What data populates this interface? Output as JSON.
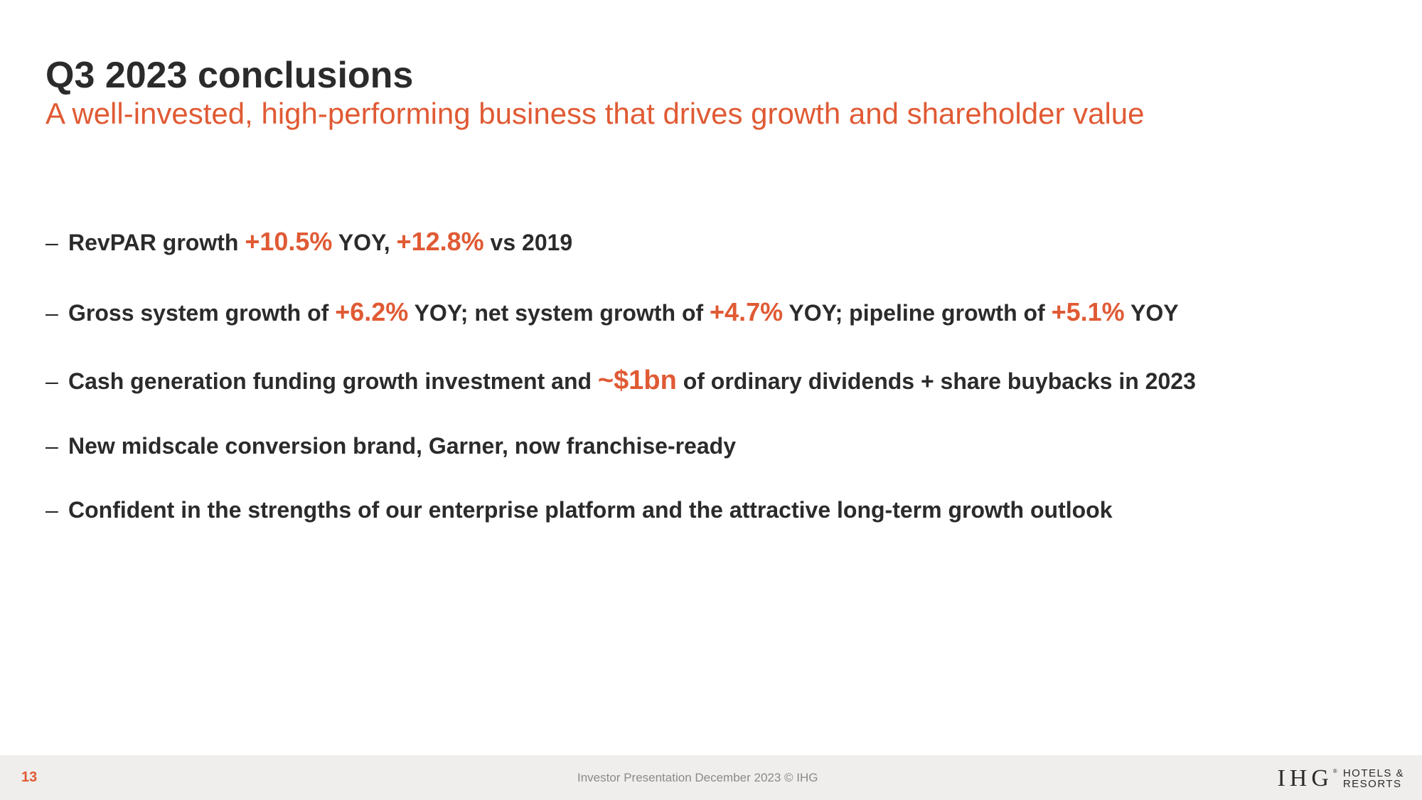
{
  "header": {
    "title": "Q3 2023 conclusions",
    "subtitle": "A well-invested, high-performing business that drives growth and shareholder value"
  },
  "bullets": [
    {
      "parts": [
        "RevPAR growth ",
        "+10.5%",
        " YOY, ",
        "+12.8%",
        " vs 2019"
      ]
    },
    {
      "parts": [
        "Gross system growth of ",
        "+6.2%",
        " YOY; net system growth of ",
        "+4.7%",
        " YOY; pipeline growth of ",
        "+5.1%",
        " YOY"
      ]
    },
    {
      "parts": [
        "Cash generation funding growth investment and ",
        "~$1bn",
        " of ordinary dividends + share buybacks in 2023"
      ]
    },
    {
      "text": "New midscale conversion brand, Garner, now franchise-ready"
    },
    {
      "text": "Confident in the strengths of our enterprise platform and the attractive long-term growth outlook"
    }
  ],
  "bullet_marker": "–",
  "footer": {
    "page_number": "13",
    "text": "Investor Presentation December 2023  © IHG",
    "logo_mark": "IHG",
    "logo_reg": "®",
    "logo_line1": "HOTELS &",
    "logo_line2": "RESORTS"
  },
  "colors": {
    "accent": "#e05a34",
    "text": "#2b2b2b",
    "footer_bg": "#efeeec",
    "footer_text": "#8a8a8a"
  }
}
